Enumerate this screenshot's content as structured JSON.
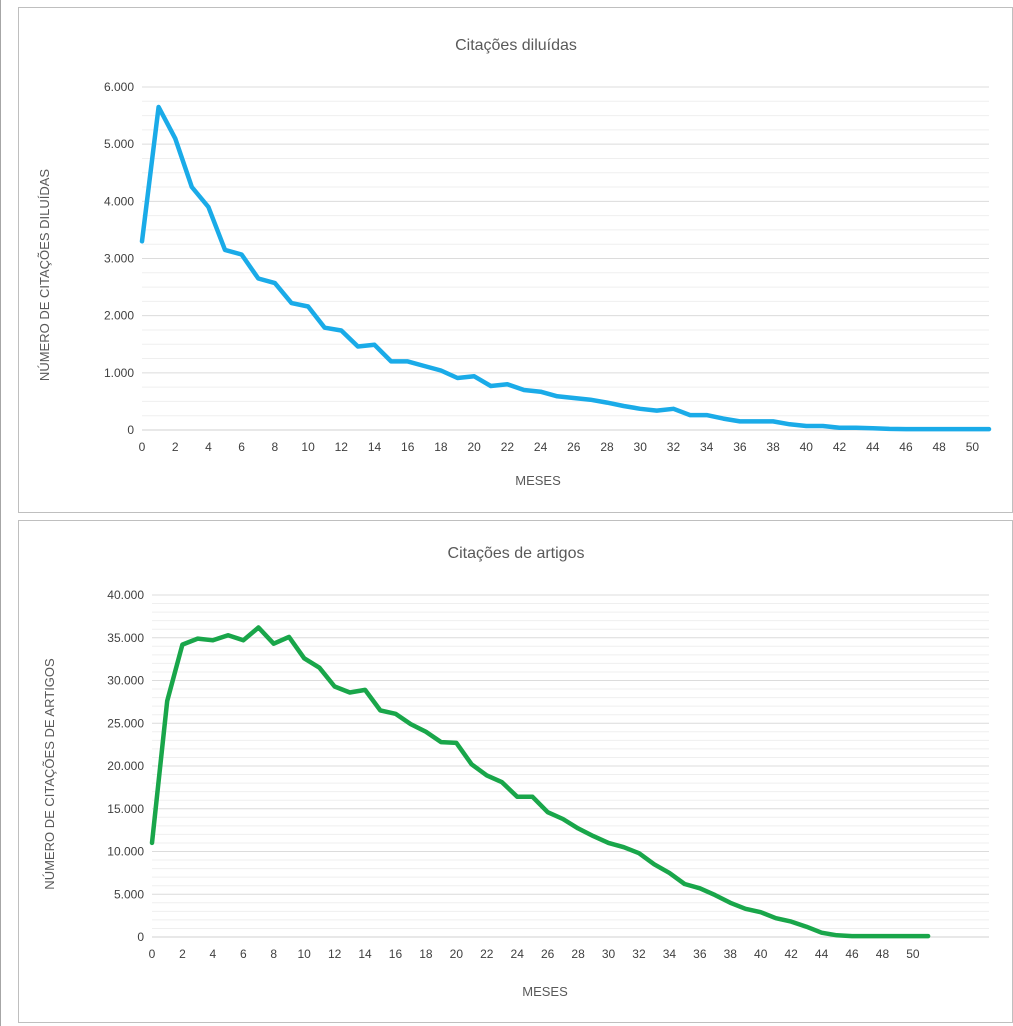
{
  "chart_data": [
    {
      "type": "line",
      "title": "Citações diluídas",
      "xlabel": "MESES",
      "ylabel": "NÚMERO DE CITAÇÕES DILUÍDAS",
      "ylim": [
        0,
        6000
      ],
      "xlim": [
        0,
        51
      ],
      "y_ticks": [
        "0",
        "1.000",
        "2.000",
        "3.000",
        "4.000",
        "5.000",
        "6.000"
      ],
      "x_ticks": [
        "0",
        "2",
        "4",
        "6",
        "8",
        "10",
        "12",
        "14",
        "16",
        "18",
        "20",
        "22",
        "24",
        "26",
        "28",
        "30",
        "32",
        "34",
        "36",
        "38",
        "40",
        "42",
        "44",
        "46",
        "48",
        "50"
      ],
      "grid": true,
      "legend": "none",
      "series": [
        {
          "color": "#1aabe8",
          "x": [
            0,
            1,
            2,
            3,
            4,
            5,
            6,
            7,
            8,
            9,
            10,
            11,
            12,
            13,
            14,
            15,
            16,
            17,
            18,
            19,
            20,
            21,
            22,
            23,
            24,
            25,
            26,
            27,
            28,
            29,
            30,
            31,
            32,
            33,
            34,
            35,
            36,
            37,
            38,
            39,
            40,
            41,
            42,
            43,
            44,
            45,
            46,
            47,
            48,
            49,
            50,
            51
          ],
          "values": [
            3300,
            5650,
            5100,
            4250,
            3900,
            3150,
            3070,
            2650,
            2570,
            2220,
            2160,
            1790,
            1740,
            1460,
            1490,
            1200,
            1200,
            1120,
            1040,
            910,
            940,
            770,
            800,
            700,
            670,
            590,
            560,
            530,
            480,
            420,
            370,
            340,
            370,
            260,
            260,
            200,
            150,
            150,
            150,
            100,
            70,
            70,
            40,
            40,
            30,
            20,
            15,
            15,
            15,
            15,
            15,
            15
          ]
        }
      ]
    },
    {
      "type": "line",
      "title": "Citações de artigos",
      "xlabel": "MESES",
      "ylabel": "NÚMERO DE CITAÇÕES DE ARTIGOS",
      "ylim": [
        0,
        40000
      ],
      "xlim": [
        0,
        55
      ],
      "y_ticks": [
        "0",
        "5.000",
        "10.000",
        "15.000",
        "20.000",
        "25.000",
        "30.000",
        "35.000",
        "40.000"
      ],
      "x_ticks": [
        "0",
        "2",
        "4",
        "6",
        "8",
        "10",
        "12",
        "14",
        "16",
        "18",
        "20",
        "22",
        "24",
        "26",
        "28",
        "30",
        "32",
        "34",
        "36",
        "38",
        "40",
        "42",
        "44",
        "46",
        "48",
        "50"
      ],
      "grid": true,
      "legend": "none",
      "series": [
        {
          "color": "#19a64a",
          "x": [
            0,
            1,
            2,
            3,
            4,
            5,
            6,
            7,
            8,
            9,
            10,
            11,
            12,
            13,
            14,
            15,
            16,
            17,
            18,
            19,
            20,
            21,
            22,
            23,
            24,
            25,
            26,
            27,
            28,
            29,
            30,
            31,
            32,
            33,
            34,
            35,
            36,
            37,
            38,
            39,
            40,
            41,
            42,
            43,
            44,
            45,
            46,
            47,
            48,
            49,
            50,
            51
          ],
          "values": [
            11000,
            27600,
            34200,
            34900,
            34700,
            35300,
            34700,
            36200,
            34300,
            35100,
            32600,
            31500,
            29300,
            28600,
            28900,
            26500,
            26100,
            24900,
            24000,
            22800,
            22700,
            20200,
            18900,
            18100,
            16400,
            16400,
            14600,
            13800,
            12700,
            11800,
            11000,
            10500,
            9800,
            8500,
            7500,
            6200,
            5700,
            4900,
            4000,
            3300,
            2900,
            2200,
            1800,
            1200,
            500,
            200,
            100,
            100,
            100,
            100,
            100,
            100
          ]
        }
      ]
    }
  ]
}
